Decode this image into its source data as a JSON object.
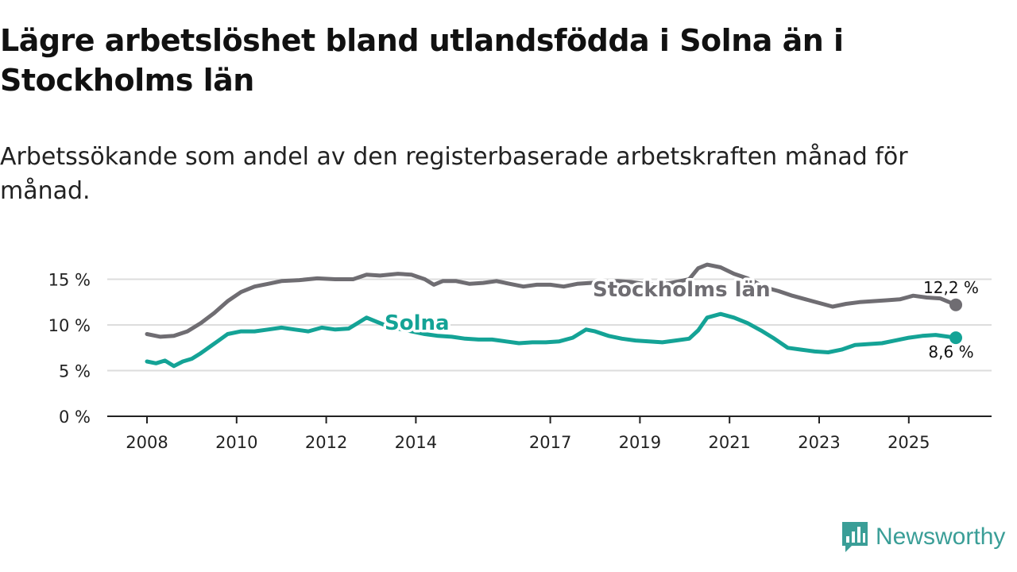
{
  "header": {
    "title": "Lägre arbetslöshet bland utlandsfödda i Solna än i Stockholms län",
    "subtitle": "Arbetssökande som andel av den registerbaserade arbetskraften månad för månad."
  },
  "branding": {
    "name": "Newsworthy",
    "icon": "bar-chart-speech-bubble-icon",
    "color": "#3a9e97"
  },
  "colors": {
    "solna": "#14a396",
    "stockholm": "#6f6d72",
    "grid": "#dddddd",
    "axis": "#222222"
  },
  "chart_data": {
    "type": "line",
    "title": "Lägre arbetslöshet bland utlandsfödda i Solna än i Stockholms län",
    "subtitle": "Arbetssökande som andel av den registerbaserade arbetskraften månad för månad.",
    "xlabel": "",
    "ylabel": "",
    "xlim": [
      2008,
      2026.2
    ],
    "ylim": [
      0,
      17
    ],
    "yticks": [
      0,
      5,
      10,
      15
    ],
    "ytick_labels": [
      "0 %",
      "5 %",
      "10 %",
      "15 %"
    ],
    "xticks": [
      2008,
      2010,
      2012,
      2014,
      2017,
      2019,
      2021,
      2023,
      2025
    ],
    "xtick_labels": [
      "2008",
      "2010",
      "2012",
      "2014",
      "2017",
      "2019",
      "2021",
      "2023",
      "2025"
    ],
    "grid": true,
    "series": [
      {
        "name": "Stockholms län",
        "end_label": "12,2 %",
        "points": [
          [
            2008.0,
            9.0
          ],
          [
            2008.3,
            8.7
          ],
          [
            2008.6,
            8.8
          ],
          [
            2008.9,
            9.3
          ],
          [
            2009.2,
            10.2
          ],
          [
            2009.5,
            11.3
          ],
          [
            2009.8,
            12.6
          ],
          [
            2010.1,
            13.6
          ],
          [
            2010.4,
            14.2
          ],
          [
            2010.7,
            14.5
          ],
          [
            2011.0,
            14.8
          ],
          [
            2011.4,
            14.9
          ],
          [
            2011.8,
            15.1
          ],
          [
            2012.2,
            15.0
          ],
          [
            2012.6,
            15.0
          ],
          [
            2012.9,
            15.5
          ],
          [
            2013.2,
            15.4
          ],
          [
            2013.6,
            15.6
          ],
          [
            2013.9,
            15.5
          ],
          [
            2014.2,
            15.0
          ],
          [
            2014.4,
            14.4
          ],
          [
            2014.6,
            14.8
          ],
          [
            2014.9,
            14.8
          ],
          [
            2015.2,
            14.5
          ],
          [
            2015.5,
            14.6
          ],
          [
            2015.8,
            14.8
          ],
          [
            2016.1,
            14.5
          ],
          [
            2016.4,
            14.2
          ],
          [
            2016.7,
            14.4
          ],
          [
            2017.0,
            14.4
          ],
          [
            2017.3,
            14.2
          ],
          [
            2017.6,
            14.5
          ],
          [
            2017.9,
            14.6
          ],
          [
            2018.2,
            14.7
          ],
          [
            2018.5,
            14.8
          ],
          [
            2018.8,
            14.7
          ],
          [
            2019.1,
            14.5
          ],
          [
            2019.4,
            14.4
          ],
          [
            2019.7,
            14.6
          ],
          [
            2019.9,
            14.8
          ],
          [
            2020.1,
            15.0
          ],
          [
            2020.3,
            16.2
          ],
          [
            2020.5,
            16.6
          ],
          [
            2020.8,
            16.3
          ],
          [
            2021.1,
            15.6
          ],
          [
            2021.4,
            15.1
          ],
          [
            2021.8,
            14.1
          ],
          [
            2022.1,
            13.7
          ],
          [
            2022.4,
            13.2
          ],
          [
            2022.7,
            12.8
          ],
          [
            2023.0,
            12.4
          ],
          [
            2023.3,
            12.0
          ],
          [
            2023.6,
            12.3
          ],
          [
            2023.9,
            12.5
          ],
          [
            2024.2,
            12.6
          ],
          [
            2024.5,
            12.7
          ],
          [
            2024.8,
            12.8
          ],
          [
            2025.1,
            13.2
          ],
          [
            2025.4,
            13.0
          ],
          [
            2025.7,
            12.9
          ],
          [
            2026.05,
            12.2
          ]
        ]
      },
      {
        "name": "Solna",
        "end_label": "8,6 %",
        "points": [
          [
            2008.0,
            6.0
          ],
          [
            2008.2,
            5.8
          ],
          [
            2008.4,
            6.1
          ],
          [
            2008.6,
            5.5
          ],
          [
            2008.8,
            6.0
          ],
          [
            2009.0,
            6.3
          ],
          [
            2009.2,
            6.9
          ],
          [
            2009.4,
            7.6
          ],
          [
            2009.6,
            8.3
          ],
          [
            2009.8,
            9.0
          ],
          [
            2010.1,
            9.3
          ],
          [
            2010.4,
            9.3
          ],
          [
            2010.7,
            9.5
          ],
          [
            2011.0,
            9.7
          ],
          [
            2011.3,
            9.5
          ],
          [
            2011.6,
            9.3
          ],
          [
            2011.9,
            9.7
          ],
          [
            2012.2,
            9.5
          ],
          [
            2012.5,
            9.6
          ],
          [
            2012.7,
            10.2
          ],
          [
            2012.9,
            10.8
          ],
          [
            2013.1,
            10.4
          ],
          [
            2013.3,
            10.0
          ],
          [
            2013.6,
            9.6
          ],
          [
            2013.9,
            9.3
          ],
          [
            2014.2,
            9.0
          ],
          [
            2014.5,
            8.8
          ],
          [
            2014.8,
            8.7
          ],
          [
            2015.1,
            8.5
          ],
          [
            2015.4,
            8.4
          ],
          [
            2015.7,
            8.4
          ],
          [
            2016.0,
            8.2
          ],
          [
            2016.3,
            8.0
          ],
          [
            2016.6,
            8.1
          ],
          [
            2016.9,
            8.1
          ],
          [
            2017.2,
            8.2
          ],
          [
            2017.5,
            8.6
          ],
          [
            2017.8,
            9.5
          ],
          [
            2018.0,
            9.3
          ],
          [
            2018.3,
            8.8
          ],
          [
            2018.6,
            8.5
          ],
          [
            2018.9,
            8.3
          ],
          [
            2019.2,
            8.2
          ],
          [
            2019.5,
            8.1
          ],
          [
            2019.8,
            8.3
          ],
          [
            2020.1,
            8.5
          ],
          [
            2020.3,
            9.4
          ],
          [
            2020.5,
            10.8
          ],
          [
            2020.8,
            11.2
          ],
          [
            2021.1,
            10.8
          ],
          [
            2021.4,
            10.2
          ],
          [
            2021.7,
            9.4
          ],
          [
            2022.0,
            8.5
          ],
          [
            2022.3,
            7.5
          ],
          [
            2022.6,
            7.3
          ],
          [
            2022.9,
            7.1
          ],
          [
            2023.2,
            7.0
          ],
          [
            2023.5,
            7.3
          ],
          [
            2023.8,
            7.8
          ],
          [
            2024.1,
            7.9
          ],
          [
            2024.4,
            8.0
          ],
          [
            2024.7,
            8.3
          ],
          [
            2025.0,
            8.6
          ],
          [
            2025.3,
            8.8
          ],
          [
            2025.6,
            8.9
          ],
          [
            2026.05,
            8.6
          ]
        ]
      }
    ]
  }
}
